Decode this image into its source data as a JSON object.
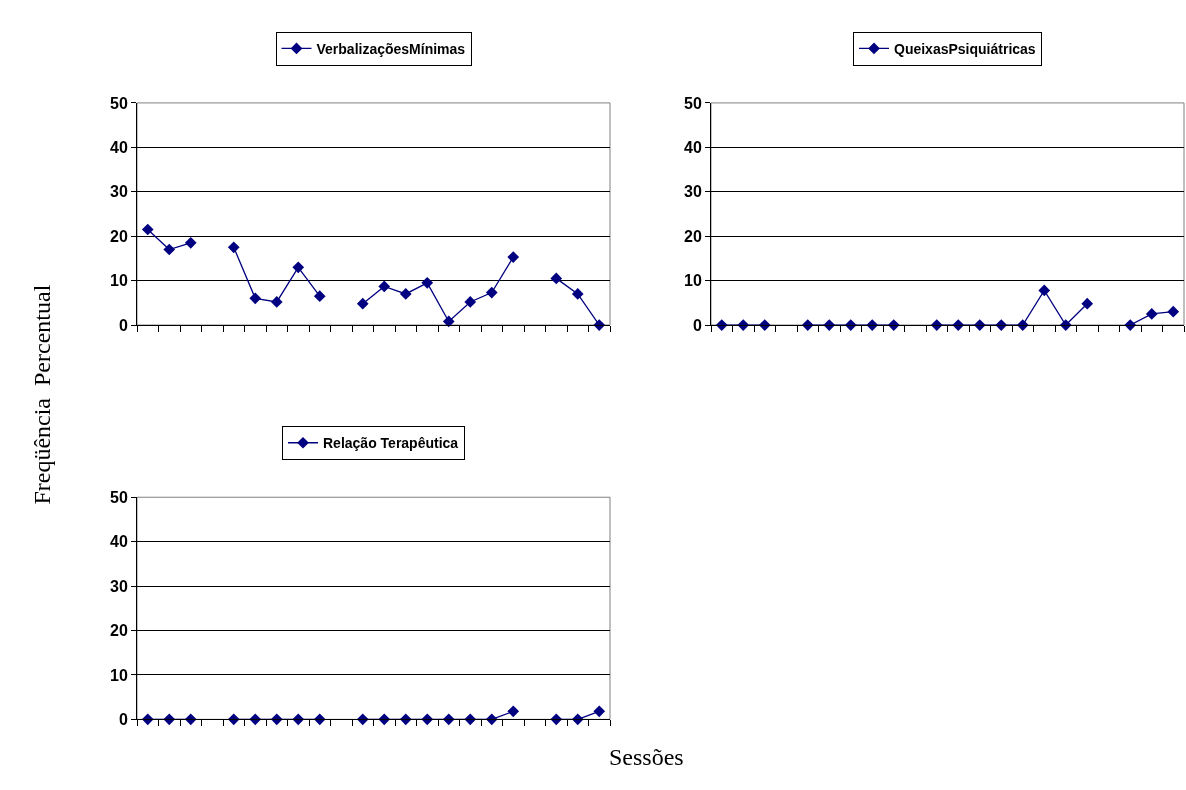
{
  "chart_data": [
    {
      "type": "line",
      "categories": [
        null,
        null,
        null,
        null,
        null,
        null,
        null,
        null,
        null,
        null,
        null,
        null,
        null,
        null,
        null,
        null,
        null,
        null,
        null,
        null,
        null,
        null
      ],
      "series": [
        {
          "name": "VerbalizaçõesMínimas",
          "color": "#000080",
          "values": [
            21.5,
            17,
            18.5,
            null,
            17.5,
            6,
            5.2,
            13,
            6.5,
            null,
            4.8,
            8.7,
            7,
            9.5,
            0.8,
            5.2,
            7.3,
            15.3,
            null,
            10.5,
            7,
            0
          ]
        }
      ],
      "ylim": [
        0,
        50
      ],
      "yticks": [
        0,
        10,
        20,
        30,
        40,
        50
      ],
      "grid": "y",
      "legend": "top",
      "marker": "diamond",
      "line_style": "solid",
      "ylabel": "Freqüência  Percentual"
    },
    {
      "type": "line",
      "categories": [
        null,
        null,
        null,
        null,
        null,
        null,
        null,
        null,
        null,
        null,
        null,
        null,
        null,
        null,
        null,
        null,
        null,
        null,
        null,
        null,
        null,
        null
      ],
      "series": [
        {
          "name": "QueixasPsiquiátricas",
          "color": "#000080",
          "values": [
            0,
            0,
            0,
            null,
            0,
            0,
            0,
            0,
            0,
            null,
            0,
            0,
            0,
            0,
            0,
            7.8,
            0,
            4.8,
            null,
            0,
            2.5,
            3
          ]
        }
      ],
      "ylim": [
        0,
        50
      ],
      "yticks": [
        0,
        10,
        20,
        30,
        40,
        50
      ],
      "grid": "y",
      "legend": "top",
      "marker": "diamond",
      "line_style": "solid"
    },
    {
      "type": "line",
      "categories": [
        null,
        null,
        null,
        null,
        null,
        null,
        null,
        null,
        null,
        null,
        null,
        null,
        null,
        null,
        null,
        null,
        null,
        null,
        null,
        null,
        null,
        null
      ],
      "series": [
        {
          "name": "Relação Terapêutica",
          "color": "#000080",
          "values": [
            0,
            0,
            0,
            null,
            0,
            0,
            0,
            0,
            0,
            null,
            0,
            0,
            0,
            0,
            0,
            0,
            0,
            1.8,
            null,
            0,
            0,
            1.8
          ]
        }
      ],
      "ylim": [
        0,
        50
      ],
      "yticks": [
        0,
        10,
        20,
        30,
        40,
        50
      ],
      "grid": "y",
      "legend": "top",
      "marker": "diamond",
      "line_style": "solid",
      "xlabel": "Sessões"
    }
  ]
}
